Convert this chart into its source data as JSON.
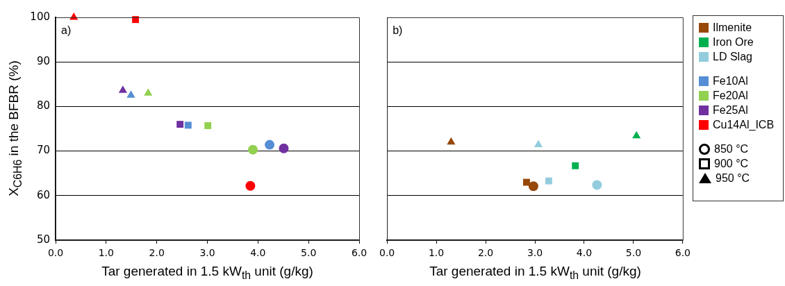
{
  "chart_data": [
    {
      "type": "scatter",
      "xlabel": "Tar generated in 1.5 kW$_{th}$ unit (g/kg)",
      "ylabel": "X$_{C6H6}$ in the BFBR (%)",
      "annotations": [
        "a)"
      ],
      "grid": "y",
      "legend": "right",
      "xlim": [
        0,
        6
      ],
      "xticks": [
        {
          "value": 0,
          "label": "0.0"
        },
        {
          "value": 1,
          "label": "1.0"
        },
        {
          "value": 2,
          "label": "2.0"
        },
        {
          "value": 3,
          "label": "3.0"
        },
        {
          "value": 4,
          "label": "4.0"
        },
        {
          "value": 5,
          "label": "5.0"
        },
        {
          "value": 6,
          "label": "6.0"
        }
      ],
      "ylim": [
        50,
        100
      ],
      "yticks": [
        50,
        60,
        70,
        80,
        90,
        100
      ],
      "series": [
        {
          "name": "Fe10Al",
          "color": "#558ed5",
          "x": [
            4.23,
            2.62,
            1.49
          ],
          "values": [
            71.4,
            75.8,
            82.5
          ],
          "marker": [
            "circle",
            "square",
            "triangle"
          ]
        },
        {
          "name": "Fe20Al",
          "color": "#92d050",
          "x": [
            3.9,
            3.01,
            1.83
          ],
          "values": [
            70.3,
            75.7,
            83.0
          ],
          "marker": [
            "circle",
            "square",
            "triangle"
          ]
        },
        {
          "name": "Fe25Al",
          "color": "#7030a0",
          "x": [
            4.51,
            2.46,
            1.33
          ],
          "values": [
            70.6,
            76.0,
            83.6
          ],
          "marker": [
            "circle",
            "square",
            "triangle"
          ]
        },
        {
          "name": "Cu14Al_ICB",
          "color": "#ff0000",
          "x": [
            3.85,
            1.58,
            0.36
          ],
          "values": [
            62.2,
            99.5,
            100
          ],
          "marker": [
            "circle",
            "square",
            "triangle"
          ]
        }
      ]
    },
    {
      "type": "scatter",
      "xlabel": "Tar generated in 1.5 kW$_{th}$ unit (g/kg)",
      "annotations": [
        "b)"
      ],
      "grid": "y",
      "legend": "right",
      "tick_labels": "x",
      "xlim": [
        0,
        6
      ],
      "xticks": [
        {
          "value": 0,
          "label": "0.0"
        },
        {
          "value": 1,
          "label": "1.0"
        },
        {
          "value": 2,
          "label": "2.0"
        },
        {
          "value": 3,
          "label": "3.0"
        },
        {
          "value": 4,
          "label": "4.0"
        },
        {
          "value": 5,
          "label": "5.0"
        },
        {
          "value": 6,
          "label": "6.0"
        }
      ],
      "ylim": [
        50,
        100
      ],
      "yticks": [
        50,
        60,
        70,
        80,
        90,
        100
      ],
      "series": [
        {
          "name": "Ilmenite",
          "color": "#974706",
          "x": [
            2.97,
            2.83,
            1.3
          ],
          "values": [
            62.1,
            63.0,
            72.0
          ],
          "marker": [
            "circle",
            "square",
            "triangle"
          ]
        },
        {
          "name": "Iron Ore",
          "color": "#00b050",
          "x": [
            3.82,
            5.06
          ],
          "values": [
            66.7,
            73.4
          ],
          "marker": [
            "square",
            "triangle"
          ]
        },
        {
          "name": "LD Slag",
          "color": "#93cddd",
          "x": [
            4.26,
            3.28,
            3.07
          ],
          "values": [
            62.4,
            63.3,
            71.4
          ],
          "marker": [
            "circle",
            "square",
            "triangle"
          ]
        },
        {
          "name": "850 °C",
          "color": "#000000",
          "marker": "circle"
        },
        {
          "name": "900 °C",
          "color": "#000000",
          "marker": "square"
        },
        {
          "name": "950 °C",
          "color": "#000000",
          "marker": "triangle"
        }
      ]
    }
  ]
}
